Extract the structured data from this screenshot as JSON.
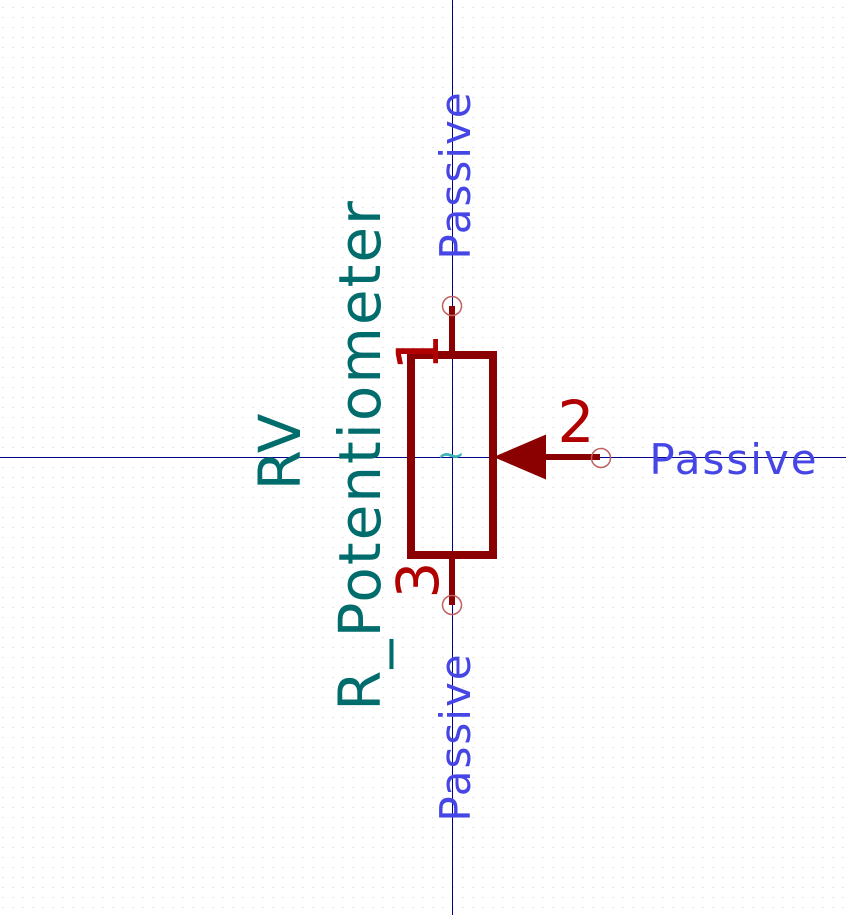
{
  "symbol": {
    "reference": "RV",
    "value": "R_Potentiometer",
    "body_glyph": "~"
  },
  "pins": [
    {
      "number": "1",
      "electrical_type": "Passive",
      "side": "top"
    },
    {
      "number": "2",
      "electrical_type": "Passive",
      "side": "right"
    },
    {
      "number": "3",
      "electrical_type": "Passive",
      "side": "bottom"
    }
  ],
  "colors": {
    "background": "#ffffff",
    "grid_dots": "#c8c8c8",
    "axes": "#00008b",
    "body": "#8b0000",
    "pin_line": "#8b0000",
    "pin_number": "#b00000",
    "pin_end_circle": "#c06060",
    "field_text": "#006c6c",
    "pin_type_text": "#4646e6",
    "wiper_glyph": "#3cb4b4"
  }
}
